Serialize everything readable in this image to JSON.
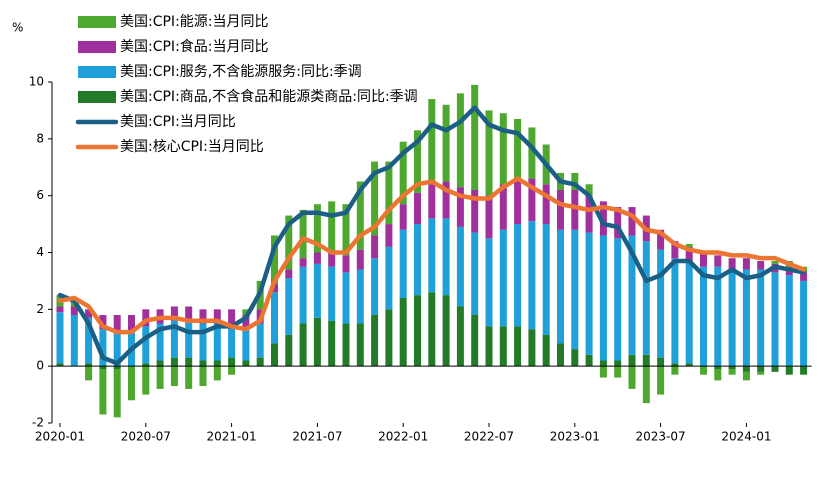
{
  "chart_data": {
    "type": "stacked_bar_line",
    "y_unit": "%",
    "categories": [
      "2020-01",
      null,
      null,
      null,
      null,
      null,
      "2020-07",
      null,
      null,
      null,
      null,
      null,
      "2021-01",
      null,
      null,
      null,
      null,
      null,
      "2021-07",
      null,
      null,
      null,
      null,
      null,
      "2022-01",
      null,
      null,
      null,
      null,
      null,
      "2022-07",
      null,
      null,
      null,
      null,
      null,
      "2023-01",
      null,
      null,
      null,
      null,
      null,
      "2023-07",
      null,
      null,
      null,
      null,
      null,
      "2024-01",
      null,
      null,
      null,
      null
    ],
    "ylim": [
      -2,
      10
    ],
    "yticks": [
      -2,
      0,
      2,
      4,
      6,
      8,
      10
    ],
    "series": [
      {
        "name": "美国:CPI:能源:当月同比",
        "kind": "bar",
        "color": "#4ea72e",
        "values": [
          0.4,
          0.2,
          -0.5,
          -1.6,
          -1.7,
          -1.2,
          -1.0,
          -0.8,
          -0.7,
          -0.8,
          -0.7,
          -0.5,
          -0.3,
          0.2,
          1.0,
          1.7,
          1.9,
          1.7,
          1.7,
          1.8,
          1.8,
          2.4,
          2.6,
          2.2,
          2.2,
          2.2,
          3.0,
          2.7,
          3.3,
          3.7,
          3.0,
          2.5,
          2.1,
          1.8,
          1.4,
          0.6,
          0.6,
          0.4,
          -0.4,
          -0.4,
          -0.8,
          -1.3,
          -1.0,
          -0.3,
          0.1,
          -0.3,
          -0.4,
          -0.2,
          -0.3,
          -0.1,
          0.1,
          0.2,
          0.2
        ]
      },
      {
        "name": "美国:CPI:食品:当月同比",
        "kind": "bar",
        "color": "#a0309b",
        "values": [
          0.2,
          0.3,
          0.3,
          0.5,
          0.6,
          0.6,
          0.6,
          0.5,
          0.5,
          0.5,
          0.5,
          0.5,
          0.5,
          0.5,
          0.5,
          0.3,
          0.3,
          0.3,
          0.4,
          0.5,
          0.6,
          0.7,
          0.8,
          0.8,
          0.9,
          1.1,
          1.2,
          1.3,
          1.4,
          1.5,
          1.5,
          1.6,
          1.6,
          1.5,
          1.4,
          1.4,
          1.4,
          1.3,
          1.2,
          1.1,
          1.0,
          0.9,
          0.7,
          0.6,
          0.5,
          0.5,
          0.4,
          0.4,
          0.4,
          0.3,
          0.3,
          0.3,
          0.3
        ]
      },
      {
        "name": "美国:CPI:服务,不含能源服务:同比:季调",
        "kind": "bar",
        "color": "#1fa0d8",
        "values": [
          1.8,
          1.8,
          1.6,
          1.3,
          1.2,
          1.2,
          1.3,
          1.3,
          1.3,
          1.3,
          1.3,
          1.3,
          1.2,
          1.1,
          1.2,
          1.8,
          2.0,
          2.0,
          1.9,
          1.9,
          1.8,
          1.9,
          2.0,
          2.2,
          2.4,
          2.5,
          2.6,
          2.7,
          2.8,
          2.9,
          3.1,
          3.4,
          3.6,
          3.8,
          3.9,
          4.0,
          4.2,
          4.3,
          4.4,
          4.3,
          4.2,
          4.0,
          3.8,
          3.7,
          3.6,
          3.5,
          3.5,
          3.4,
          3.4,
          3.4,
          3.3,
          3.2,
          3.0
        ]
      },
      {
        "name": "美国:CPI:商品,不含食品和能源类商品:同比:季调",
        "kind": "bar",
        "color": "#237a28",
        "values": [
          0.1,
          0.0,
          0.1,
          -0.1,
          -0.1,
          0.0,
          0.1,
          0.2,
          0.3,
          0.3,
          0.2,
          0.2,
          0.3,
          0.2,
          0.3,
          0.8,
          1.1,
          1.5,
          1.7,
          1.6,
          1.5,
          1.5,
          1.8,
          2.0,
          2.4,
          2.5,
          2.6,
          2.5,
          2.1,
          1.8,
          1.4,
          1.4,
          1.4,
          1.3,
          1.1,
          0.8,
          0.6,
          0.4,
          0.2,
          0.2,
          0.4,
          0.4,
          0.3,
          0.1,
          0.1,
          0.0,
          -0.1,
          -0.1,
          -0.2,
          -0.2,
          -0.2,
          -0.3,
          -0.3
        ]
      },
      {
        "name": "美国:CPI:当月同比",
        "kind": "line",
        "color": "#1b5f86",
        "values": [
          2.5,
          2.3,
          1.5,
          0.3,
          0.1,
          0.6,
          1.0,
          1.3,
          1.4,
          1.2,
          1.2,
          1.4,
          1.4,
          1.7,
          2.6,
          4.2,
          5.0,
          5.4,
          5.4,
          5.3,
          5.4,
          6.2,
          6.8,
          7.0,
          7.5,
          7.9,
          8.5,
          8.3,
          8.6,
          9.1,
          8.5,
          8.3,
          8.2,
          7.7,
          7.1,
          6.5,
          6.4,
          6.0,
          5.0,
          4.9,
          4.0,
          3.0,
          3.2,
          3.7,
          3.7,
          3.2,
          3.1,
          3.4,
          3.1,
          3.2,
          3.5,
          3.4,
          3.3
        ]
      },
      {
        "name": "美国:核心CPI:当月同比",
        "kind": "line",
        "color": "#ec7532",
        "values": [
          2.3,
          2.4,
          2.1,
          1.4,
          1.2,
          1.2,
          1.6,
          1.7,
          1.7,
          1.6,
          1.6,
          1.6,
          1.4,
          1.3,
          1.6,
          3.0,
          3.8,
          4.5,
          4.3,
          4.0,
          4.0,
          4.6,
          4.9,
          5.5,
          6.0,
          6.4,
          6.5,
          6.2,
          6.0,
          5.9,
          5.9,
          6.3,
          6.6,
          6.3,
          6.0,
          5.7,
          5.6,
          5.5,
          5.6,
          5.5,
          5.3,
          4.8,
          4.7,
          4.3,
          4.1,
          4.0,
          4.0,
          3.9,
          3.9,
          3.8,
          3.8,
          3.6,
          3.4
        ]
      }
    ]
  }
}
